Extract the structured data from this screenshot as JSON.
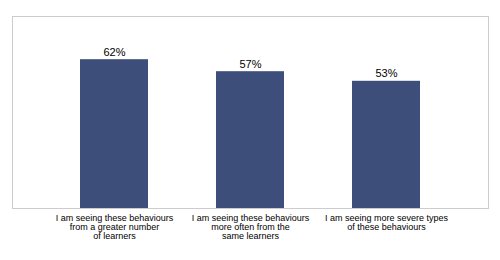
{
  "chart_data": {
    "type": "bar",
    "categories": [
      "I am seeing these behaviours\nfrom a greater number\nof learners",
      "I am seeing these behaviours\nmore often from the\nsame learners",
      "I am seeing more severe types\nof these behaviours"
    ],
    "values": [
      62,
      57,
      53
    ],
    "value_labels": [
      "62%",
      "57%",
      "53%"
    ],
    "data_labels": true,
    "color": "#3d4e7a",
    "ylim": [
      0,
      80
    ],
    "tick_labels": "x",
    "grid": false
  }
}
